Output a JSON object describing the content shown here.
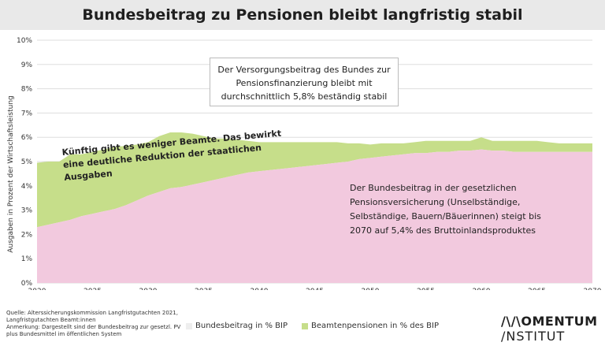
{
  "title": "Bundesbeitrag zu Pensionen bleibt langfristig stabil",
  "callout": "Der Versorgungsbeitrag des Bundes zur Pensionsfinanzierung bleibt mit durchschnittlich 5,8% beständig stabil",
  "annotation_green": "Künftig gibt es weniger Beamte. Das bewirkt eine deutliche Reduktion der staatlichen Ausgaben",
  "annotation_pink": "Der Bundesbeitrag in der gesetzlichen Pensionsversicherung (Unselbständige, Selbständige, Bauern/Bäuerinnen) steigt bis 2070 auf 5,4% des Bruttoinlandsproduktes",
  "source_note": "Quelle: Alterssicherungskommission Langfristgutachten 2021, Langfristgutachten Beamt:innen\nAnmerkung: Dargestellt sind der Bundesbeitrag zur gesetzl. PV plus Bundesmittel im öffentlichen System",
  "logo": {
    "line1": "/\\/\\OMENTUM",
    "line2": "/NSTITUT"
  },
  "colors": {
    "bundesbeitrag": "#f2c9de",
    "beamte": "#c6de8a",
    "title_bg": "#e9e9e9"
  },
  "chart_data": {
    "type": "area",
    "stacked": true,
    "ylabel": "Ausgaben in Prozent der Wirtschaftsleistung",
    "ylim": [
      0,
      10
    ],
    "yticks": [
      "0%",
      "1%",
      "2%",
      "3%",
      "4%",
      "5%",
      "6%",
      "7%",
      "8%",
      "9%",
      "10%"
    ],
    "xlim": [
      2020,
      2070
    ],
    "xticks": [
      "2020",
      "2025",
      "2030",
      "2035",
      "2040",
      "2045",
      "2050",
      "2055",
      "2060",
      "2065",
      "2070"
    ],
    "grid": true,
    "legend_position": "bottom",
    "x": [
      2020,
      2021,
      2022,
      2023,
      2024,
      2025,
      2026,
      2027,
      2028,
      2029,
      2030,
      2031,
      2032,
      2033,
      2034,
      2035,
      2036,
      2037,
      2038,
      2039,
      2040,
      2041,
      2042,
      2043,
      2044,
      2045,
      2046,
      2047,
      2048,
      2049,
      2050,
      2051,
      2052,
      2053,
      2054,
      2055,
      2056,
      2057,
      2058,
      2059,
      2060,
      2061,
      2062,
      2063,
      2064,
      2065,
      2066,
      2067,
      2068,
      2069,
      2070
    ],
    "series": [
      {
        "name": "Bundesbeitrag in % BIP",
        "values": [
          2.3,
          2.4,
          2.5,
          2.6,
          2.75,
          2.85,
          2.95,
          3.05,
          3.2,
          3.4,
          3.6,
          3.75,
          3.9,
          3.95,
          4.05,
          4.15,
          4.25,
          4.35,
          4.45,
          4.55,
          4.6,
          4.65,
          4.7,
          4.75,
          4.8,
          4.85,
          4.9,
          4.95,
          5.0,
          5.1,
          5.15,
          5.2,
          5.25,
          5.3,
          5.35,
          5.35,
          5.4,
          5.4,
          5.45,
          5.45,
          5.5,
          5.45,
          5.45,
          5.4,
          5.4,
          5.4,
          5.4,
          5.4,
          5.4,
          5.4,
          5.4
        ]
      },
      {
        "name": "Beamtenpensionen in % des BIP",
        "values": [
          2.65,
          2.6,
          2.5,
          2.7,
          2.55,
          2.55,
          2.55,
          2.55,
          2.45,
          2.3,
          2.2,
          2.3,
          2.3,
          2.25,
          2.1,
          1.9,
          1.7,
          1.6,
          1.45,
          1.3,
          1.2,
          1.15,
          1.1,
          1.05,
          1.0,
          0.95,
          0.9,
          0.85,
          0.75,
          0.65,
          0.55,
          0.55,
          0.5,
          0.45,
          0.45,
          0.5,
          0.45,
          0.45,
          0.4,
          0.4,
          0.5,
          0.4,
          0.4,
          0.45,
          0.45,
          0.45,
          0.4,
          0.35,
          0.35,
          0.35,
          0.35
        ]
      }
    ]
  }
}
